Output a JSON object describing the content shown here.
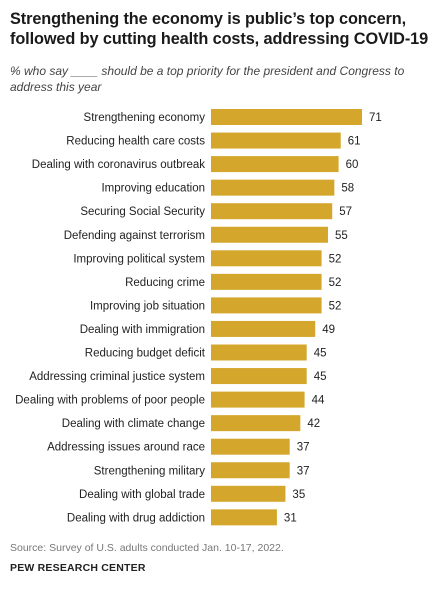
{
  "title": "Strengthening the economy is public’s top concern, followed by cutting health costs, addressing COVID-19",
  "subtitle": "% who say ____ should be a top priority for the president and Congress to address this year",
  "source": "Source: Survey of U.S. adults conducted Jan. 10-17, 2022.",
  "organization": "PEW RESEARCH CENTER",
  "colors": {
    "bar": "#d4a72c",
    "label": "#222222",
    "value": "#222222"
  },
  "chart_data": {
    "type": "bar",
    "orientation": "horizontal",
    "categories": [
      "Strengthening economy",
      "Reducing health care costs",
      "Dealing with coronavirus outbreak",
      "Improving education",
      "Securing Social Security",
      "Defending against terrorism",
      "Improving political system",
      "Reducing crime",
      "Improving job situation",
      "Dealing with immigration",
      "Reducing budget deficit",
      "Addressing criminal justice system",
      "Dealing with problems of poor people",
      "Dealing with climate change",
      "Addressing issues around race",
      "Strengthening military",
      "Dealing with global trade",
      "Dealing with drug addiction"
    ],
    "values": [
      71,
      61,
      60,
      58,
      57,
      55,
      52,
      52,
      52,
      49,
      45,
      45,
      44,
      42,
      37,
      37,
      35,
      31
    ],
    "xlim": [
      0,
      71
    ],
    "grid": false,
    "legend": "none",
    "value_labels": true
  }
}
